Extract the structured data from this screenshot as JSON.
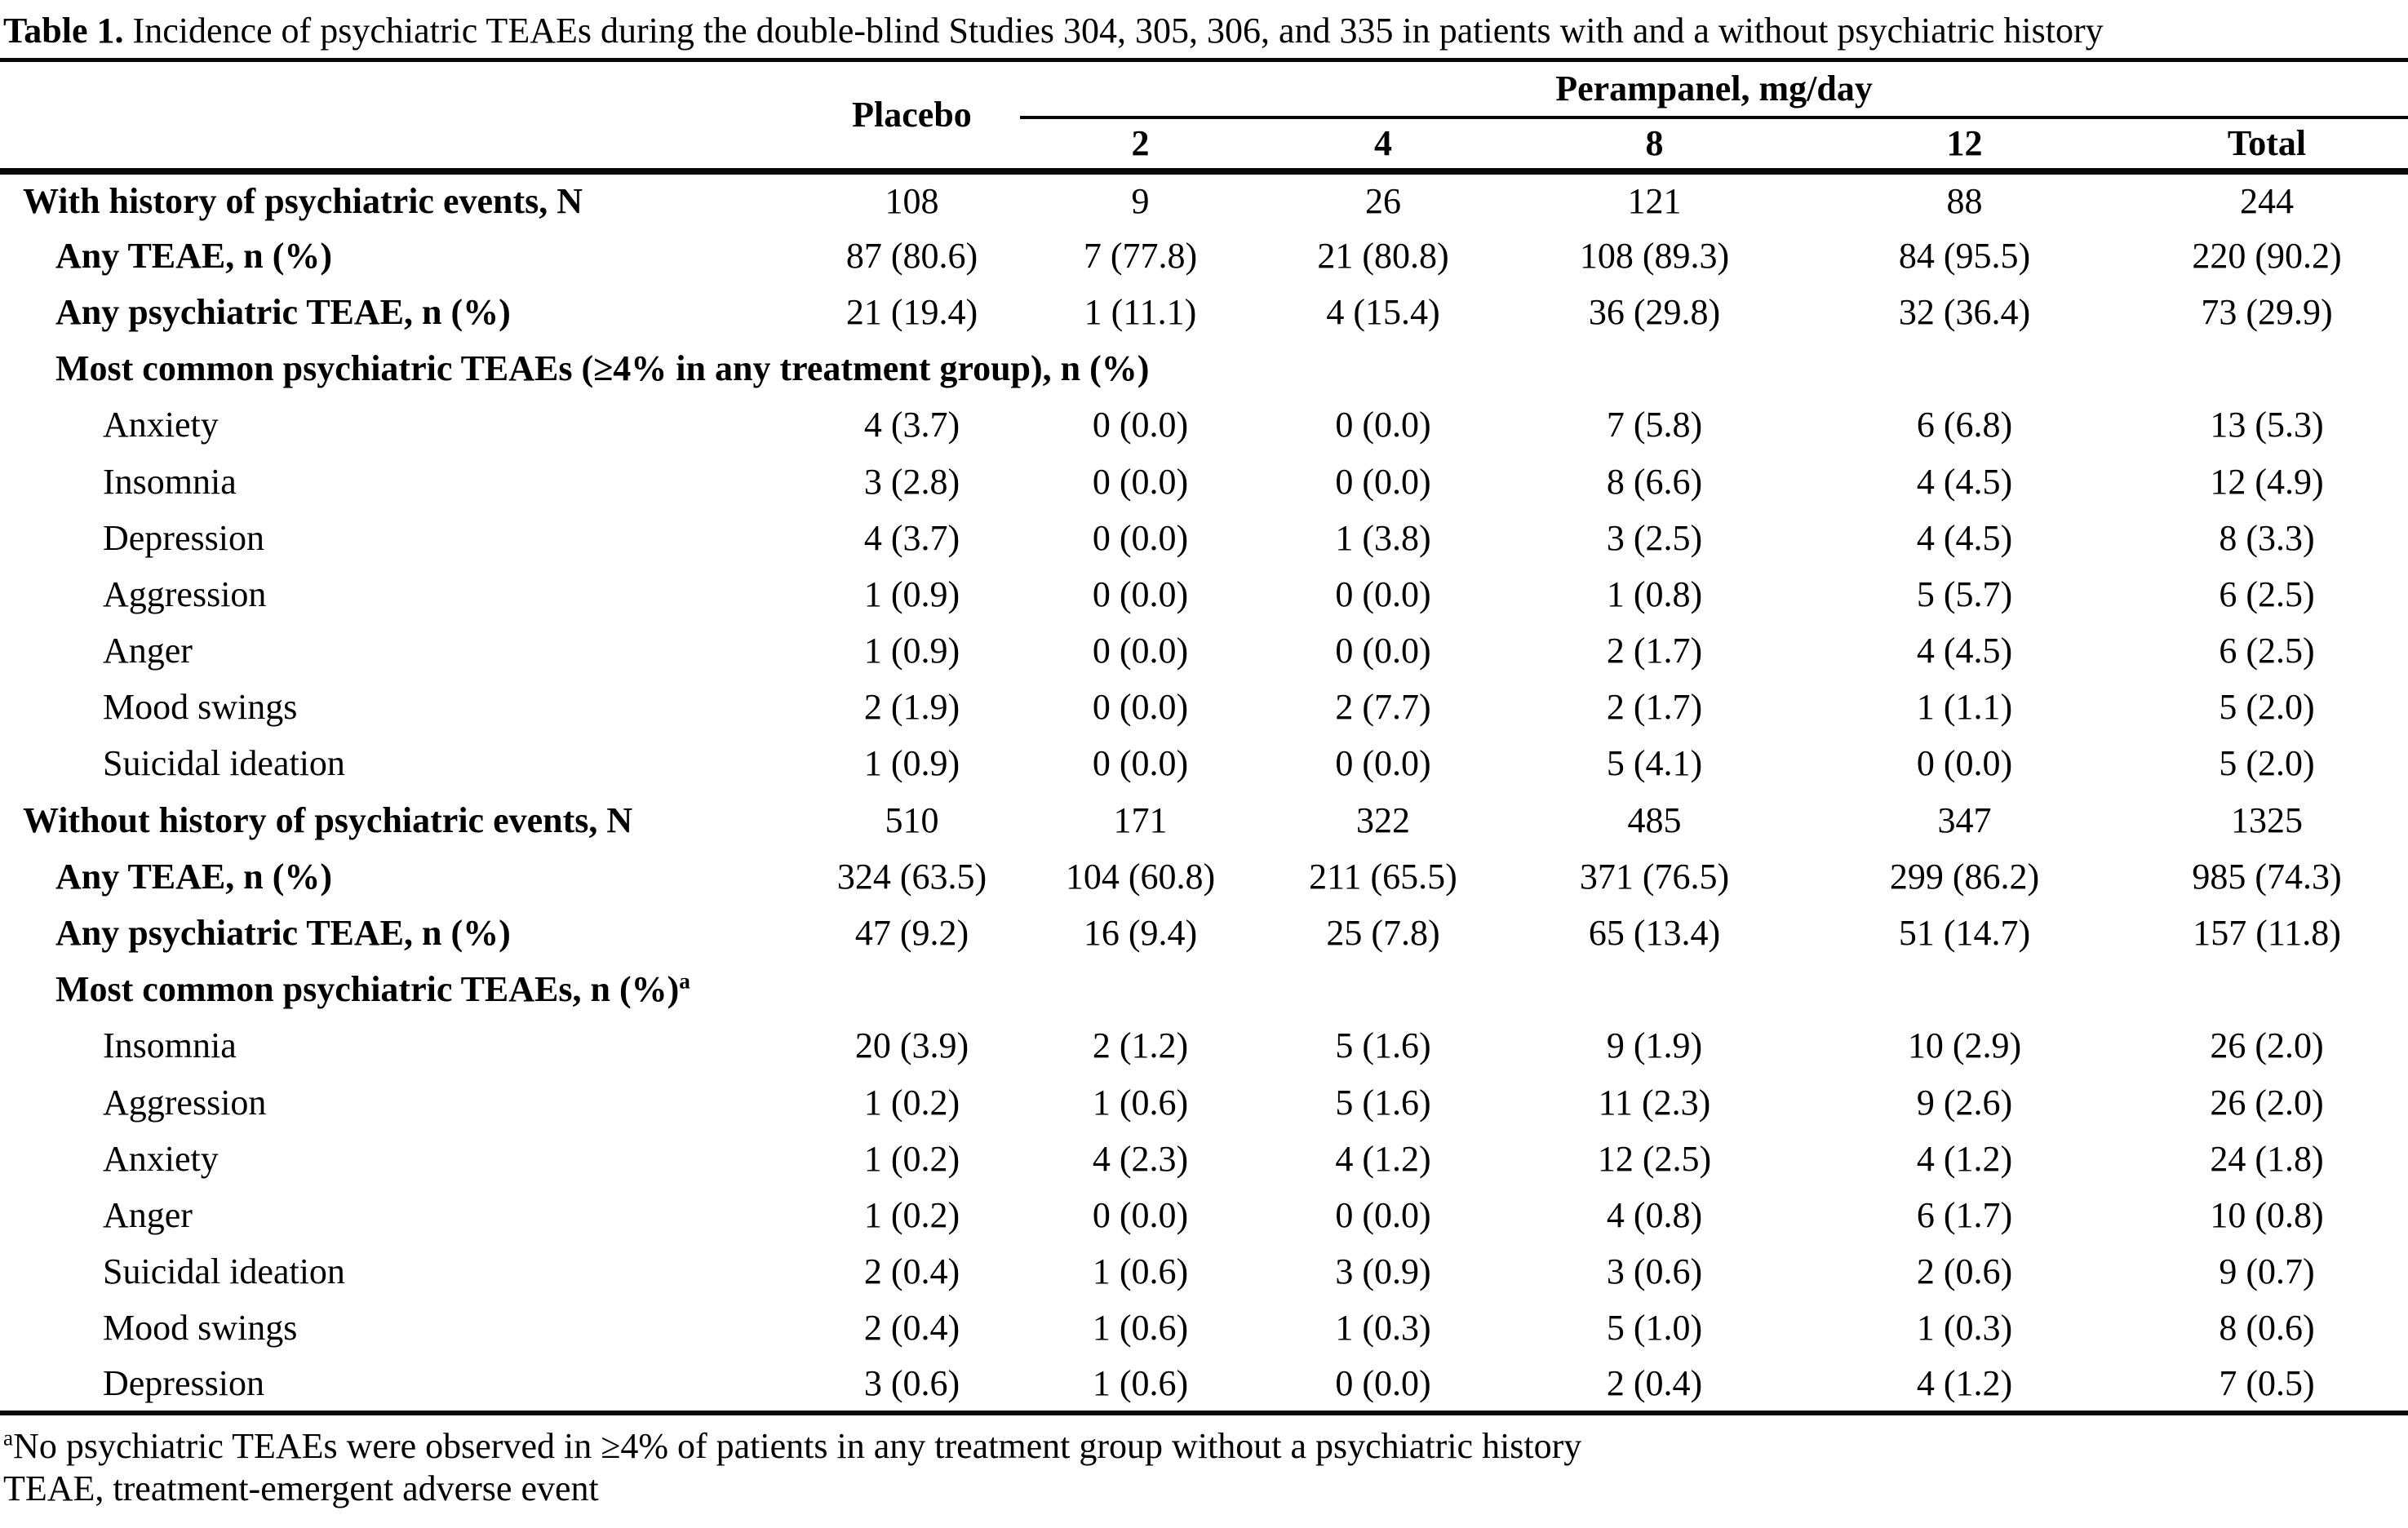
{
  "title": {
    "label": "Table 1.",
    "caption": " Incidence of psychiatric TEAEs during the double-blind Studies 304, 305, 306, and 335 in patients with and a without psychiatric history"
  },
  "table": {
    "header": {
      "placebo": "Placebo",
      "spanner": "Perampanel, mg/day",
      "doses": [
        "2",
        "4",
        "8",
        "12"
      ],
      "total": "Total"
    },
    "columns": [
      "Placebo",
      "Perampanel 2 mg/day",
      "Perampanel 4 mg/day",
      "Perampanel 8 mg/day",
      "Perampanel 12 mg/day",
      "Total"
    ],
    "rows": [
      {
        "label": "With history of psychiatric events, N",
        "indent": 0,
        "bold": true,
        "values": [
          "108",
          "9",
          "26",
          "121",
          "88",
          "244"
        ]
      },
      {
        "label": "Any TEAE, n (%)",
        "indent": 1,
        "bold": true,
        "values": [
          "87 (80.6)",
          "7 (77.8)",
          "21 (80.8)",
          "108 (89.3)",
          "84 (95.5)",
          "220 (90.2)"
        ]
      },
      {
        "label": "Any psychiatric TEAE, n (%)",
        "indent": 1,
        "bold": true,
        "values": [
          "21 (19.4)",
          "1 (11.1)",
          "4 (15.4)",
          "36 (29.8)",
          "32 (36.4)",
          "73 (29.9)"
        ]
      },
      {
        "label": "Most common psychiatric TEAEs (≥4% in any treatment group), n (%)",
        "indent": 1,
        "bold": true,
        "values": []
      },
      {
        "label": "Anxiety",
        "indent": 2,
        "bold": false,
        "values": [
          "4 (3.7)",
          "0 (0.0)",
          "0 (0.0)",
          "7 (5.8)",
          "6 (6.8)",
          "13 (5.3)"
        ]
      },
      {
        "label": "Insomnia",
        "indent": 2,
        "bold": false,
        "values": [
          "3 (2.8)",
          "0 (0.0)",
          "0 (0.0)",
          "8 (6.6)",
          "4 (4.5)",
          "12 (4.9)"
        ]
      },
      {
        "label": "Depression",
        "indent": 2,
        "bold": false,
        "values": [
          "4 (3.7)",
          "0 (0.0)",
          "1 (3.8)",
          "3 (2.5)",
          "4 (4.5)",
          "8 (3.3)"
        ]
      },
      {
        "label": "Aggression",
        "indent": 2,
        "bold": false,
        "values": [
          "1 (0.9)",
          "0 (0.0)",
          "0 (0.0)",
          "1 (0.8)",
          "5 (5.7)",
          "6 (2.5)"
        ]
      },
      {
        "label": "Anger",
        "indent": 2,
        "bold": false,
        "values": [
          "1 (0.9)",
          "0 (0.0)",
          "0 (0.0)",
          "2 (1.7)",
          "4 (4.5)",
          "6 (2.5)"
        ]
      },
      {
        "label": "Mood swings",
        "indent": 2,
        "bold": false,
        "values": [
          "2 (1.9)",
          "0 (0.0)",
          "2 (7.7)",
          "2 (1.7)",
          "1 (1.1)",
          "5 (2.0)"
        ]
      },
      {
        "label": "Suicidal ideation",
        "indent": 2,
        "bold": false,
        "values": [
          "1 (0.9)",
          "0 (0.0)",
          "0 (0.0)",
          "5 (4.1)",
          "0 (0.0)",
          "5 (2.0)"
        ]
      },
      {
        "label": "Without history of psychiatric events, N",
        "indent": 0,
        "bold": true,
        "values": [
          "510",
          "171",
          "322",
          "485",
          "347",
          "1325"
        ]
      },
      {
        "label": "Any TEAE, n (%)",
        "indent": 1,
        "bold": true,
        "values": [
          "324 (63.5)",
          "104 (60.8)",
          "211 (65.5)",
          "371 (76.5)",
          "299 (86.2)",
          "985 (74.3)"
        ]
      },
      {
        "label": "Any psychiatric TEAE, n (%)",
        "indent": 1,
        "bold": true,
        "values": [
          "47 (9.2)",
          "16 (9.4)",
          "25 (7.8)",
          "65 (13.4)",
          "51 (14.7)",
          "157 (11.8)"
        ]
      },
      {
        "label": "Most common psychiatric TEAEs, n (%)",
        "sup": "a",
        "indent": 1,
        "bold": true,
        "values": []
      },
      {
        "label": "Insomnia",
        "indent": 2,
        "bold": false,
        "values": [
          "20 (3.9)",
          "2 (1.2)",
          "5 (1.6)",
          "9 (1.9)",
          "10 (2.9)",
          "26 (2.0)"
        ]
      },
      {
        "label": "Aggression",
        "indent": 2,
        "bold": false,
        "values": [
          "1 (0.2)",
          "1 (0.6)",
          "5 (1.6)",
          "11 (2.3)",
          "9 (2.6)",
          "26 (2.0)"
        ]
      },
      {
        "label": "Anxiety",
        "indent": 2,
        "bold": false,
        "values": [
          "1 (0.2)",
          "4 (2.3)",
          "4 (1.2)",
          "12 (2.5)",
          "4 (1.2)",
          "24 (1.8)"
        ]
      },
      {
        "label": "Anger",
        "indent": 2,
        "bold": false,
        "values": [
          "1 (0.2)",
          "0 (0.0)",
          "0 (0.0)",
          "4 (0.8)",
          "6 (1.7)",
          "10 (0.8)"
        ]
      },
      {
        "label": "Suicidal ideation",
        "indent": 2,
        "bold": false,
        "values": [
          "2 (0.4)",
          "1 (0.6)",
          "3 (0.9)",
          "3 (0.6)",
          "2 (0.6)",
          "9 (0.7)"
        ]
      },
      {
        "label": "Mood swings",
        "indent": 2,
        "bold": false,
        "values": [
          "2 (0.4)",
          "1 (0.6)",
          "1 (0.3)",
          "5 (1.0)",
          "1 (0.3)",
          "8 (0.6)"
        ]
      },
      {
        "label": "Depression",
        "indent": 2,
        "bold": false,
        "values": [
          "3 (0.6)",
          "1 (0.6)",
          "0 (0.0)",
          "2 (0.4)",
          "4 (1.2)",
          "7 (0.5)"
        ]
      }
    ]
  },
  "footnotes": [
    {
      "sup": "a",
      "text": "No psychiatric TEAEs were observed in ≥4% of patients in any treatment group without a psychiatric history"
    },
    {
      "text": "TEAE, treatment-emergent adverse event"
    }
  ]
}
